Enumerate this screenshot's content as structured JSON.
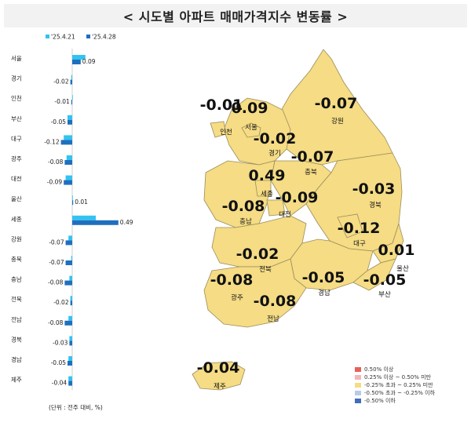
{
  "title": "< 시도별 아파트 매매가격지수 변동률 >",
  "chart_data": {
    "type": "bar",
    "orientation": "horizontal",
    "categories": [
      "서울",
      "경기",
      "인천",
      "부산",
      "대구",
      "광주",
      "대전",
      "울산",
      "세종",
      "강원",
      "충북",
      "충남",
      "전북",
      "전남",
      "경북",
      "경남",
      "제주"
    ],
    "series": [
      {
        "name": "'25.4.21",
        "color": "#33c3f0",
        "values": [
          0.14,
          -0.01,
          0.0,
          -0.05,
          -0.09,
          -0.06,
          -0.07,
          0.0,
          0.25,
          -0.04,
          -0.01,
          -0.03,
          -0.02,
          -0.04,
          -0.03,
          -0.04,
          -0.04
        ]
      },
      {
        "name": "'25.4.28",
        "color": "#1f6fbf",
        "values": [
          0.09,
          -0.02,
          -0.01,
          -0.05,
          -0.12,
          -0.08,
          -0.09,
          0.01,
          0.49,
          -0.07,
          -0.07,
          -0.08,
          -0.02,
          -0.08,
          -0.03,
          -0.05,
          -0.04
        ]
      }
    ],
    "unit_note": "(단위 : 전주 대비, %)"
  },
  "map": {
    "regions": [
      {
        "name": "인천",
        "value": "-0.01"
      },
      {
        "name": "서울",
        "value": "0.09"
      },
      {
        "name": "강원",
        "value": "-0.07"
      },
      {
        "name": "경기",
        "value": "-0.02"
      },
      {
        "name": "충북",
        "value": "-0.07"
      },
      {
        "name": "세종",
        "value": "0.49"
      },
      {
        "name": "대전",
        "value": "-0.09"
      },
      {
        "name": "충남",
        "value": "-0.08"
      },
      {
        "name": "경북",
        "value": "-0.03"
      },
      {
        "name": "대구",
        "value": "-0.12"
      },
      {
        "name": "울산",
        "value": "0.01"
      },
      {
        "name": "전북",
        "value": "-0.02"
      },
      {
        "name": "광주",
        "value": "-0.08"
      },
      {
        "name": "경남",
        "value": "-0.05"
      },
      {
        "name": "부산",
        "value": "-0.05"
      },
      {
        "name": "전남",
        "value": "-0.08"
      },
      {
        "name": "제주",
        "value": "-0.04"
      }
    ],
    "fill_color": "#f5dc85",
    "legend": [
      {
        "label": "0.50% 이상",
        "color": "#e8605a"
      },
      {
        "label": "0.25% 이상 ~ 0.50% 미만",
        "color": "#f4b6b6"
      },
      {
        "label": "-0.25% 초과 ~ 0.25% 미만",
        "color": "#f5dc85"
      },
      {
        "label": "-0.50% 초과 ~ -0.25% 이하",
        "color": "#b9cbe8"
      },
      {
        "label": "-0.50% 이하",
        "color": "#3f6fb6"
      }
    ]
  }
}
